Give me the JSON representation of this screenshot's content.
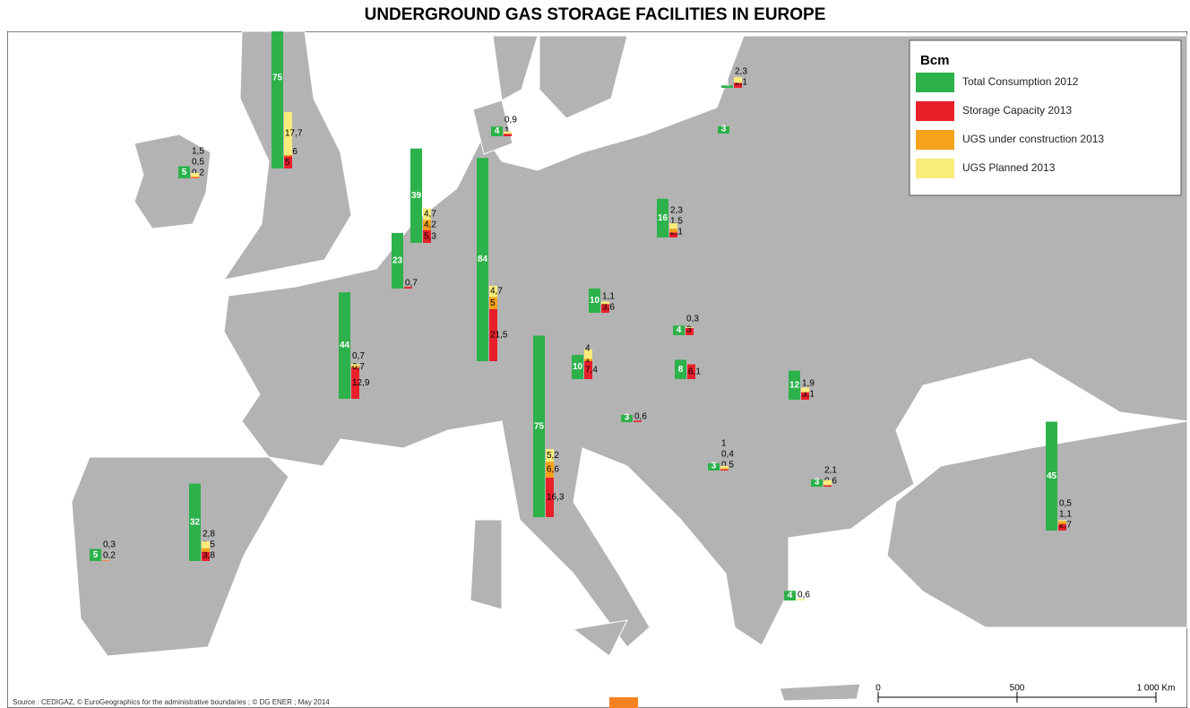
{
  "title": "UNDERGROUND GAS STORAGE FACILITIES IN EUROPE",
  "legend": {
    "title": "Bcm",
    "series": [
      {
        "name": "Total Consumption 2012",
        "color": "#2db14a"
      },
      {
        "name": "Storage Capacity 2013",
        "color": "#e8202a"
      },
      {
        "name": "UGS under construction 2013",
        "color": "#f7a21b"
      },
      {
        "name": "UGS Planned 2013",
        "color": "#f9ec7a"
      }
    ]
  },
  "sites": [
    {
      "values": [
        5,
        0.2,
        0.5,
        1.5
      ],
      "value_labels": [
        "5",
        "0,2",
        "0,5",
        "1,5"
      ]
    },
    {
      "values": [
        75,
        5,
        0.6,
        17.7
      ],
      "value_labels": [
        "75",
        "5",
        "0,6",
        "17,7"
      ]
    },
    {
      "values": [
        4,
        1,
        null,
        0.9
      ],
      "value_labels": [
        "4",
        "1",
        null,
        "0,9"
      ]
    },
    {
      "values": [
        1,
        2.1,
        null,
        2.3
      ],
      "value_labels": [
        "1",
        "2,1",
        null,
        "2,3"
      ]
    },
    {
      "values": [
        3,
        null,
        null,
        null
      ],
      "value_labels": [
        "3",
        null,
        null,
        null
      ]
    },
    {
      "values": [
        39,
        5.3,
        4.2,
        4.7
      ],
      "value_labels": [
        "39",
        "5,3",
        "4,2",
        "4,7"
      ]
    },
    {
      "values": [
        23,
        0.7,
        null,
        null
      ],
      "value_labels": [
        "23",
        "0,7",
        null,
        null
      ]
    },
    {
      "values": [
        44,
        12.9,
        0.7,
        0.7
      ],
      "value_labels": [
        "44",
        "12,9",
        "0,7",
        "0,7"
      ]
    },
    {
      "values": [
        84,
        21.5,
        5,
        4.7
      ],
      "value_labels": [
        "84",
        "21,5",
        "5",
        "4,7"
      ]
    },
    {
      "values": [
        16,
        2.1,
        1.5,
        2.3
      ],
      "value_labels": [
        "16",
        "2,1",
        "1,5",
        "2,3"
      ]
    },
    {
      "values": [
        10,
        3.6,
        null,
        1.1
      ],
      "value_labels": [
        "10",
        "3,6",
        null,
        "1,1"
      ]
    },
    {
      "values": [
        4,
        3,
        null,
        0.3
      ],
      "value_labels": [
        "4",
        "3",
        null,
        "0,3"
      ]
    },
    {
      "values": [
        10,
        7.4,
        1,
        4
      ],
      "value_labels": [
        "10",
        "7,4",
        "1",
        "4"
      ]
    },
    {
      "values": [
        8,
        6.1,
        null,
        null
      ],
      "value_labels": [
        "8",
        "6,1",
        null,
        null
      ]
    },
    {
      "values": [
        12,
        3.1,
        null,
        1.9
      ],
      "value_labels": [
        "12",
        "3,1",
        null,
        "1,9"
      ]
    },
    {
      "values": [
        75,
        16.3,
        6.6,
        5.2
      ],
      "value_labels": [
        "75",
        "16,3",
        "6,6",
        "5,2"
      ]
    },
    {
      "values": [
        3,
        0.6,
        null,
        null
      ],
      "value_labels": [
        "3",
        "0,6",
        null,
        null
      ]
    },
    {
      "values": [
        3,
        0.5,
        0.4,
        1
      ],
      "value_labels": [
        "3",
        "0,5",
        "0,4",
        "1"
      ]
    },
    {
      "values": [
        3,
        0.6,
        null,
        2.1
      ],
      "value_labels": [
        "3",
        "0,6",
        null,
        "2,1"
      ]
    },
    {
      "values": [
        45,
        2.7,
        1.1,
        0.5
      ],
      "value_labels": [
        "45",
        "2,7",
        "1,1",
        "0,5"
      ]
    },
    {
      "values": [
        4,
        null,
        null,
        0.6
      ],
      "value_labels": [
        "4",
        null,
        null,
        "0,6"
      ]
    },
    {
      "values": [
        32,
        3.8,
        1.5,
        2.8
      ],
      "value_labels": [
        "32",
        "3,8",
        "1,5",
        "2,8"
      ]
    },
    {
      "values": [
        5,
        0.2,
        null,
        0.3
      ],
      "value_labels": [
        "5",
        "0,2",
        null,
        "0,3"
      ]
    }
  ],
  "source": "Source : CEDIGAZ, © EuroGeographics for the administrative boundaries ; © DG ENER ; May 2014",
  "scale_labels": [
    "0",
    "500",
    "1 000 Km"
  ]
}
